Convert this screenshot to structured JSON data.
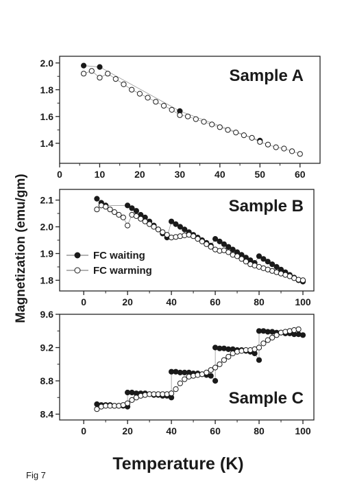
{
  "figure_label": "Fig 7",
  "shared_xlabel": "Temperature (K)",
  "shared_ylabel": "Magnetization (emu/gm)",
  "chart_data": [
    {
      "type": "scatter",
      "panel_title": "Sample A",
      "xlim": [
        0,
        65
      ],
      "ylim": [
        1.25,
        2.05
      ],
      "xticks": [
        0,
        10,
        20,
        30,
        40,
        50,
        60
      ],
      "yticks": [
        1.4,
        1.6,
        1.8,
        2.0
      ],
      "ytick_labels": [
        "1.4",
        "1.6",
        "1.8",
        "2.0"
      ],
      "series": [
        {
          "marker": "filled",
          "x": [
            6,
            10,
            30,
            50
          ],
          "y": [
            1.98,
            1.97,
            1.64,
            1.42
          ]
        },
        {
          "marker": "open",
          "x": [
            6,
            8,
            10,
            12,
            14,
            16,
            18,
            20,
            22,
            24,
            26,
            28,
            30,
            32,
            34,
            36,
            38,
            40,
            42,
            44,
            46,
            48,
            50,
            52,
            54,
            56,
            58,
            60
          ],
          "y": [
            1.92,
            1.94,
            1.89,
            1.92,
            1.88,
            1.84,
            1.8,
            1.77,
            1.74,
            1.71,
            1.68,
            1.65,
            1.61,
            1.6,
            1.58,
            1.56,
            1.54,
            1.52,
            1.5,
            1.48,
            1.46,
            1.44,
            1.41,
            1.39,
            1.37,
            1.36,
            1.34,
            1.32
          ]
        }
      ]
    },
    {
      "type": "scatter",
      "panel_title": "Sample B",
      "xlim": [
        -11,
        105
      ],
      "ylim": [
        1.76,
        2.14
      ],
      "xticks": [
        0,
        20,
        40,
        60,
        80,
        100
      ],
      "yticks": [
        1.8,
        1.9,
        2.0,
        2.1
      ],
      "ytick_labels": [
        "1.8",
        "1.9",
        "2.0",
        "2.1"
      ],
      "legend": {
        "position": "lower-left",
        "entries": [
          {
            "label": "FC waiting",
            "marker": "filled"
          },
          {
            "label": "FC warming",
            "marker": "open"
          }
        ]
      },
      "series": [
        {
          "name": "FC waiting",
          "marker": "filled",
          "x": [
            6,
            8,
            10,
            20,
            22,
            24,
            26,
            28,
            30,
            32,
            34,
            36,
            38,
            40,
            42,
            44,
            46,
            48,
            50,
            52,
            54,
            56,
            58,
            60,
            62,
            64,
            66,
            68,
            70,
            72,
            74,
            76,
            78,
            80,
            82,
            84,
            86,
            88,
            90,
            92,
            94,
            96,
            98,
            100
          ],
          "y": [
            2.105,
            2.09,
            2.08,
            2.08,
            2.07,
            2.06,
            2.045,
            2.035,
            2.02,
            2.005,
            1.99,
            1.975,
            1.96,
            2.02,
            2.01,
            2.0,
            1.99,
            1.98,
            1.97,
            1.96,
            1.95,
            1.94,
            1.93,
            1.955,
            1.945,
            1.935,
            1.925,
            1.915,
            1.905,
            1.895,
            1.885,
            1.875,
            1.865,
            1.89,
            1.88,
            1.87,
            1.86,
            1.85,
            1.84,
            1.83,
            1.82,
            1.81,
            1.8,
            1.795
          ]
        },
        {
          "name": "FC warming",
          "marker": "open",
          "x": [
            6,
            8,
            10,
            12,
            14,
            16,
            18,
            20,
            22,
            24,
            26,
            28,
            30,
            32,
            34,
            36,
            38,
            40,
            42,
            44,
            46,
            48,
            50,
            52,
            54,
            56,
            58,
            60,
            62,
            64,
            66,
            68,
            70,
            72,
            74,
            76,
            78,
            80,
            82,
            84,
            86,
            88,
            90,
            92,
            94,
            96,
            98,
            100
          ],
          "y": [
            2.065,
            2.08,
            2.075,
            2.065,
            2.055,
            2.045,
            2.035,
            2.005,
            2.045,
            2.04,
            2.03,
            2.02,
            2.01,
            2.0,
            1.99,
            1.98,
            1.97,
            1.96,
            1.962,
            1.965,
            1.968,
            1.97,
            1.965,
            1.955,
            1.945,
            1.935,
            1.925,
            1.915,
            1.91,
            1.912,
            1.905,
            1.895,
            1.89,
            1.88,
            1.87,
            1.86,
            1.855,
            1.85,
            1.845,
            1.84,
            1.835,
            1.83,
            1.825,
            1.82,
            1.815,
            1.808,
            1.802,
            1.8
          ]
        }
      ]
    },
    {
      "type": "scatter",
      "panel_title": "Sample C",
      "xlim": [
        -11,
        105
      ],
      "ylim": [
        8.33,
        9.6
      ],
      "xticks": [
        0,
        20,
        40,
        60,
        80,
        100
      ],
      "yticks": [
        8.4,
        8.8,
        9.2,
        9.6
      ],
      "ytick_labels": [
        "8.4",
        "8.8",
        "9.2",
        "9.6"
      ],
      "series": [
        {
          "marker": "filled",
          "x": [
            6,
            8,
            10,
            12,
            14,
            16,
            18,
            20,
            20,
            22,
            24,
            26,
            28,
            30,
            32,
            34,
            36,
            38,
            40,
            40,
            42,
            44,
            46,
            48,
            50,
            52,
            54,
            56,
            58,
            60,
            60,
            62,
            64,
            66,
            68,
            70,
            72,
            74,
            76,
            78,
            80,
            80,
            82,
            84,
            86,
            88,
            90,
            92,
            94,
            96,
            98,
            100
          ],
          "y": [
            8.52,
            8.51,
            8.51,
            8.51,
            8.5,
            8.5,
            8.5,
            8.49,
            8.66,
            8.66,
            8.65,
            8.65,
            8.65,
            8.64,
            8.63,
            8.63,
            8.62,
            8.62,
            8.6,
            8.91,
            8.91,
            8.9,
            8.9,
            8.9,
            8.89,
            8.89,
            8.88,
            8.87,
            8.86,
            8.8,
            9.2,
            9.19,
            9.19,
            9.18,
            9.18,
            9.17,
            9.17,
            9.16,
            9.15,
            9.13,
            9.05,
            9.4,
            9.4,
            9.39,
            9.39,
            9.38,
            9.38,
            9.37,
            9.37,
            9.36,
            9.36,
            9.35
          ]
        },
        {
          "marker": "open",
          "x": [
            6,
            8,
            10,
            12,
            14,
            16,
            18,
            20,
            22,
            24,
            26,
            28,
            30,
            32,
            34,
            36,
            38,
            40,
            42,
            44,
            46,
            48,
            50,
            52,
            54,
            56,
            58,
            60,
            62,
            64,
            66,
            68,
            70,
            72,
            74,
            76,
            78,
            80,
            82,
            84,
            86,
            88,
            90,
            92,
            94,
            96,
            98
          ],
          "y": [
            8.46,
            8.49,
            8.5,
            8.5,
            8.5,
            8.5,
            8.51,
            8.53,
            8.57,
            8.6,
            8.62,
            8.63,
            8.64,
            8.64,
            8.64,
            8.64,
            8.64,
            8.65,
            8.7,
            8.77,
            8.82,
            8.85,
            8.86,
            8.87,
            8.88,
            8.9,
            8.93,
            8.96,
            9.0,
            9.05,
            9.09,
            9.13,
            9.15,
            9.16,
            9.17,
            9.17,
            9.18,
            9.2,
            9.25,
            9.29,
            9.32,
            9.35,
            9.38,
            9.39,
            9.4,
            9.41,
            9.42
          ]
        }
      ]
    }
  ]
}
